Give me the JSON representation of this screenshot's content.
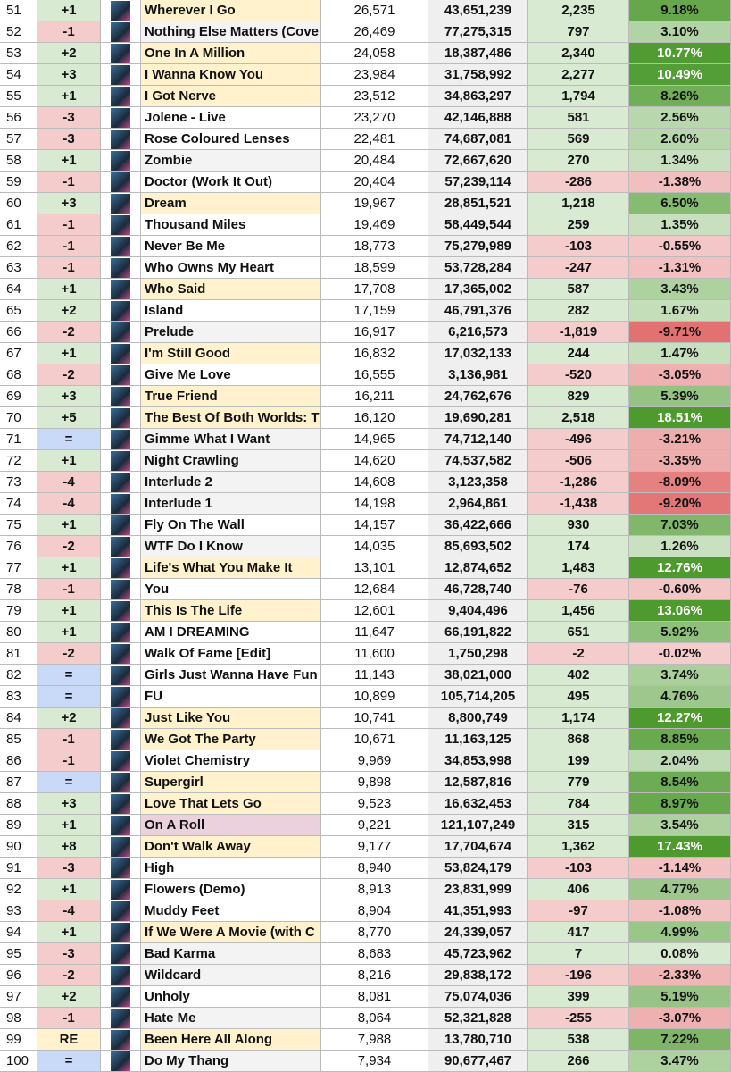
{
  "table": {
    "rows": [
      [
        "51",
        "+1",
        "Wherever I Go",
        "26,571",
        "43,651,239",
        "2,235",
        "9.18%"
      ],
      [
        "52",
        "-1",
        "Nothing Else Matters (Cove",
        "26,469",
        "77,275,315",
        "797",
        "3.10%"
      ],
      [
        "53",
        "+2",
        "One In A Million",
        "24,058",
        "18,387,486",
        "2,340",
        "10.77%"
      ],
      [
        "54",
        "+3",
        "I Wanna Know You",
        "23,984",
        "31,758,992",
        "2,277",
        "10.49%"
      ],
      [
        "55",
        "+1",
        "I Got Nerve",
        "23,512",
        "34,863,297",
        "1,794",
        "8.26%"
      ],
      [
        "56",
        "-3",
        "Jolene - Live",
        "23,270",
        "42,146,888",
        "581",
        "2.56%"
      ],
      [
        "57",
        "-3",
        "Rose Coloured Lenses",
        "22,481",
        "74,687,081",
        "569",
        "2.60%"
      ],
      [
        "58",
        "+1",
        "Zombie",
        "20,484",
        "72,667,620",
        "270",
        "1.34%"
      ],
      [
        "59",
        "-1",
        "Doctor (Work It Out)",
        "20,404",
        "57,239,114",
        "-286",
        "-1.38%"
      ],
      [
        "60",
        "+3",
        "Dream",
        "19,967",
        "28,851,521",
        "1,218",
        "6.50%"
      ],
      [
        "61",
        "-1",
        "Thousand Miles",
        "19,469",
        "58,449,544",
        "259",
        "1.35%"
      ],
      [
        "62",
        "-1",
        "Never Be Me",
        "18,773",
        "75,279,989",
        "-103",
        "-0.55%"
      ],
      [
        "63",
        "-1",
        "Who Owns My Heart",
        "18,599",
        "53,728,284",
        "-247",
        "-1.31%"
      ],
      [
        "64",
        "+1",
        "Who Said",
        "17,708",
        "17,365,002",
        "587",
        "3.43%"
      ],
      [
        "65",
        "+2",
        "Island",
        "17,159",
        "46,791,376",
        "282",
        "1.67%"
      ],
      [
        "66",
        "-2",
        "Prelude",
        "16,917",
        "6,216,573",
        "-1,819",
        "-9.71%"
      ],
      [
        "67",
        "+1",
        "I'm Still Good",
        "16,832",
        "17,032,133",
        "244",
        "1.47%"
      ],
      [
        "68",
        "-2",
        "Give Me Love",
        "16,555",
        "3,136,981",
        "-520",
        "-3.05%"
      ],
      [
        "69",
        "+3",
        "True Friend",
        "16,211",
        "24,762,676",
        "829",
        "5.39%"
      ],
      [
        "70",
        "+5",
        "The Best Of Both Worlds: T",
        "16,120",
        "19,690,281",
        "2,518",
        "18.51%"
      ],
      [
        "71",
        "=",
        "Gimme What I Want",
        "14,965",
        "74,712,140",
        "-496",
        "-3.21%"
      ],
      [
        "72",
        "+1",
        "Night Crawling",
        "14,620",
        "74,537,582",
        "-506",
        "-3.35%"
      ],
      [
        "73",
        "-4",
        "Interlude 2",
        "14,608",
        "3,123,358",
        "-1,286",
        "-8.09%"
      ],
      [
        "74",
        "-4",
        "Interlude 1",
        "14,198",
        "2,964,861",
        "-1,438",
        "-9.20%"
      ],
      [
        "75",
        "+1",
        "Fly On The Wall",
        "14,157",
        "36,422,666",
        "930",
        "7.03%"
      ],
      [
        "76",
        "-2",
        "WTF Do I Know",
        "14,035",
        "85,693,502",
        "174",
        "1.26%"
      ],
      [
        "77",
        "+1",
        "Life's What You Make It",
        "13,101",
        "12,874,652",
        "1,483",
        "12.76%"
      ],
      [
        "78",
        "-1",
        "You",
        "12,684",
        "46,728,740",
        "-76",
        "-0.60%"
      ],
      [
        "79",
        "+1",
        "This Is The Life",
        "12,601",
        "9,404,496",
        "1,456",
        "13.06%"
      ],
      [
        "80",
        "+1",
        "AM I DREAMING",
        "11,647",
        "66,191,822",
        "651",
        "5.92%"
      ],
      [
        "81",
        "-2",
        "Walk Of Fame [Edit]",
        "11,600",
        "1,750,298",
        "-2",
        "-0.02%"
      ],
      [
        "82",
        "=",
        "Girls Just Wanna Have Fun",
        "11,143",
        "38,021,000",
        "402",
        "3.74%"
      ],
      [
        "83",
        "=",
        "FU",
        "10,899",
        "105,714,205",
        "495",
        "4.76%"
      ],
      [
        "84",
        "+2",
        "Just Like You",
        "10,741",
        "8,800,749",
        "1,174",
        "12.27%"
      ],
      [
        "85",
        "-1",
        "We Got The Party",
        "10,671",
        "11,163,125",
        "868",
        "8.85%"
      ],
      [
        "86",
        "-1",
        "Violet Chemistry",
        "9,969",
        "34,853,998",
        "199",
        "2.04%"
      ],
      [
        "87",
        "=",
        "Supergirl",
        "9,898",
        "12,587,816",
        "779",
        "8.54%"
      ],
      [
        "88",
        "+3",
        "Love That Lets Go",
        "9,523",
        "16,632,453",
        "784",
        "8.97%"
      ],
      [
        "89",
        "+1",
        "On A Roll",
        "9,221",
        "121,107,249",
        "315",
        "3.54%"
      ],
      [
        "90",
        "+8",
        "Don't Walk Away",
        "9,177",
        "17,704,674",
        "1,362",
        "17.43%"
      ],
      [
        "91",
        "-3",
        "High",
        "8,940",
        "53,824,179",
        "-103",
        "-1.14%"
      ],
      [
        "92",
        "+1",
        "Flowers (Demo)",
        "8,913",
        "23,831,999",
        "406",
        "4.77%"
      ],
      [
        "93",
        "-4",
        "Muddy Feet",
        "8,904",
        "41,351,993",
        "-97",
        "-1.08%"
      ],
      [
        "94",
        "+1",
        "If We Were A Movie (with C",
        "8,770",
        "24,339,057",
        "417",
        "4.99%"
      ],
      [
        "95",
        "-3",
        "Bad Karma",
        "8,683",
        "45,723,962",
        "7",
        "0.08%"
      ],
      [
        "96",
        "-2",
        "Wildcard",
        "8,216",
        "29,838,172",
        "-196",
        "-2.33%"
      ],
      [
        "97",
        "+2",
        "Unholy",
        "8,081",
        "75,074,036",
        "399",
        "5.19%"
      ],
      [
        "98",
        "-1",
        "Hate Me",
        "8,064",
        "52,321,828",
        "-255",
        "-3.07%"
      ],
      [
        "99",
        "RE",
        "Been Here All Along",
        "7,988",
        "13,780,710",
        "538",
        "7.22%"
      ],
      [
        "100",
        "=",
        "Do My Thang",
        "7,934",
        "90,677,467",
        "266",
        "3.47%"
      ]
    ],
    "title_colors": [
      "#fff2cc",
      "#f3f3f3",
      "#fff2cc",
      "#fff2cc",
      "#fff2cc",
      "#ffffff",
      "#ffffff",
      "#f3f3f3",
      "#ffffff",
      "#fff2cc",
      "#ffffff",
      "#ffffff",
      "#ffffff",
      "#fff2cc",
      "#ffffff",
      "#f3f3f3",
      "#fff2cc",
      "#ffffff",
      "#fff2cc",
      "#fff2cc",
      "#f3f3f3",
      "#f3f3f3",
      "#f3f3f3",
      "#f3f3f3",
      "#ffffff",
      "#f3f3f3",
      "#fff2cc",
      "#ffffff",
      "#fff2cc",
      "#ffffff",
      "#ffffff",
      "#ffffff",
      "#ffffff",
      "#fff2cc",
      "#fff2cc",
      "#ffffff",
      "#fff2cc",
      "#fff2cc",
      "#ead1dc",
      "#fff2cc",
      "#ffffff",
      "#ffffff",
      "#ffffff",
      "#fff2cc",
      "#f3f3f3",
      "#f3f3f3",
      "#ffffff",
      "#f3f3f3",
      "#fff2cc",
      "#f3f3f3"
    ]
  }
}
